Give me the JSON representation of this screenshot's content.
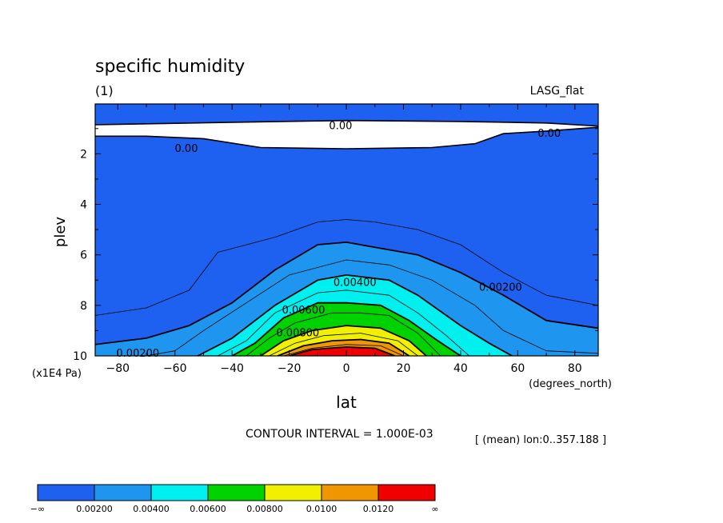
{
  "chart_data": {
    "type": "contour",
    "title": "specific humidity",
    "subtitle": "(1)",
    "dataset_label": "LASG_flat",
    "xlabel": "lat",
    "xunits": "(degrees_north)",
    "ylabel": "plev",
    "yunits": "(x1E4 Pa)",
    "xlim": [
      -88,
      88
    ],
    "ylim": [
      10,
      0.2
    ],
    "x_ticks": [
      -80,
      -60,
      -40,
      -20,
      0,
      20,
      40,
      60,
      80
    ],
    "x_tick_labels": [
      "−80",
      "−60",
      "−40",
      "−20",
      "0",
      "20",
      "40",
      "60",
      "80"
    ],
    "y_ticks": [
      2,
      4,
      6,
      8,
      10
    ],
    "y_tick_labels": [
      "2",
      "4",
      "6",
      "8",
      "10"
    ],
    "contour_interval_text": "CONTOUR INTERVAL = 1.000E-03",
    "mean_note": "[ (mean) lon:0..357.188 ]",
    "contour_labels": [
      {
        "text": "0.00",
        "lat": -2,
        "plev": 0.9
      },
      {
        "text": "0.00",
        "lat": 71,
        "plev": 1.2
      },
      {
        "text": "0.00",
        "lat": -56,
        "plev": 1.8
      },
      {
        "text": "0.00400",
        "lat": 3,
        "plev": 7.1
      },
      {
        "text": "0.00200",
        "lat": 54,
        "plev": 7.3
      },
      {
        "text": "0.00200",
        "lat": -73,
        "plev": 9.9
      },
      {
        "text": "0.00600",
        "lat": -15,
        "plev": 8.2
      },
      {
        "text": "0.00800",
        "lat": -17,
        "plev": 9.1
      }
    ],
    "zero_region_bounds": {
      "top": [
        [
          -88,
          0.85
        ],
        [
          -40,
          0.75
        ],
        [
          0,
          0.68
        ],
        [
          40,
          0.72
        ],
        [
          70,
          0.78
        ],
        [
          88,
          0.9
        ]
      ],
      "bottom": [
        [
          88,
          0.95
        ],
        [
          70,
          1.1
        ],
        [
          55,
          1.2
        ],
        [
          45,
          1.6
        ],
        [
          30,
          1.75
        ],
        [
          0,
          1.8
        ],
        [
          -30,
          1.75
        ],
        [
          -50,
          1.4
        ],
        [
          -70,
          1.3
        ],
        [
          -88,
          1.3
        ]
      ]
    },
    "contours": [
      {
        "level": 0.001,
        "points": [
          [
            -88,
            8.4
          ],
          [
            -70,
            8.1
          ],
          [
            -55,
            7.4
          ],
          [
            -45,
            5.9
          ],
          [
            -25,
            5.3
          ],
          [
            -10,
            4.7
          ],
          [
            0,
            4.6
          ],
          [
            10,
            4.7
          ],
          [
            25,
            5.0
          ],
          [
            40,
            5.6
          ],
          [
            55,
            6.7
          ],
          [
            70,
            7.6
          ],
          [
            88,
            8.0
          ]
        ]
      },
      {
        "level": 0.002,
        "points": [
          [
            -88,
            9.55
          ],
          [
            -70,
            9.3
          ],
          [
            -55,
            8.8
          ],
          [
            -40,
            7.9
          ],
          [
            -25,
            6.6
          ],
          [
            -10,
            5.6
          ],
          [
            0,
            5.5
          ],
          [
            10,
            5.7
          ],
          [
            25,
            6.0
          ],
          [
            40,
            6.7
          ],
          [
            55,
            7.6
          ],
          [
            70,
            8.6
          ],
          [
            88,
            8.9
          ]
        ]
      },
      {
        "level": 0.003,
        "points": [
          [
            -70,
            10
          ],
          [
            -60,
            9.8
          ],
          [
            -50,
            9.0
          ],
          [
            -35,
            7.9
          ],
          [
            -20,
            6.8
          ],
          [
            0,
            6.2
          ],
          [
            15,
            6.4
          ],
          [
            30,
            7.0
          ],
          [
            45,
            8.0
          ],
          [
            55,
            9.0
          ],
          [
            70,
            9.8
          ],
          [
            88,
            9.9
          ]
        ]
      },
      {
        "level": 0.004,
        "points": [
          [
            -52,
            10
          ],
          [
            -40,
            9.3
          ],
          [
            -25,
            8.0
          ],
          [
            -10,
            7.0
          ],
          [
            0,
            6.8
          ],
          [
            15,
            7.0
          ],
          [
            25,
            7.6
          ],
          [
            40,
            8.8
          ],
          [
            50,
            9.5
          ],
          [
            58,
            10
          ]
        ]
      },
      {
        "level": 0.005,
        "points": [
          [
            -45,
            10
          ],
          [
            -35,
            9.4
          ],
          [
            -25,
            8.3
          ],
          [
            -10,
            7.5
          ],
          [
            0,
            7.4
          ],
          [
            15,
            7.6
          ],
          [
            25,
            8.3
          ],
          [
            35,
            9.2
          ],
          [
            43,
            10
          ]
        ]
      },
      {
        "level": 0.006,
        "points": [
          [
            -40,
            10
          ],
          [
            -32,
            9.5
          ],
          [
            -22,
            8.5
          ],
          [
            -10,
            7.9
          ],
          [
            0,
            7.9
          ],
          [
            12,
            8.0
          ],
          [
            22,
            8.6
          ],
          [
            32,
            9.4
          ],
          [
            40,
            10
          ]
        ]
      },
      {
        "level": 0.007,
        "points": [
          [
            -35,
            10
          ],
          [
            -27,
            9.3
          ],
          [
            -18,
            8.7
          ],
          [
            -5,
            8.3
          ],
          [
            5,
            8.3
          ],
          [
            15,
            8.4
          ],
          [
            25,
            9.1
          ],
          [
            33,
            10
          ]
        ]
      },
      {
        "level": 0.008,
        "points": [
          [
            -30,
            10
          ],
          [
            -22,
            9.4
          ],
          [
            -12,
            9.0
          ],
          [
            0,
            8.8
          ],
          [
            12,
            8.9
          ],
          [
            22,
            9.4
          ],
          [
            28,
            10
          ]
        ]
      },
      {
        "level": 0.009,
        "points": [
          [
            -27,
            10
          ],
          [
            -18,
            9.5
          ],
          [
            -8,
            9.2
          ],
          [
            5,
            9.1
          ],
          [
            18,
            9.4
          ],
          [
            25,
            10
          ]
        ]
      },
      {
        "level": 0.01,
        "points": [
          [
            -24,
            10
          ],
          [
            -15,
            9.6
          ],
          [
            -5,
            9.4
          ],
          [
            5,
            9.35
          ],
          [
            15,
            9.5
          ],
          [
            22,
            10
          ]
        ]
      },
      {
        "level": 0.011,
        "points": [
          [
            -22,
            10
          ],
          [
            -12,
            9.7
          ],
          [
            0,
            9.55
          ],
          [
            12,
            9.6
          ],
          [
            20,
            10
          ]
        ]
      },
      {
        "level": 0.012,
        "points": [
          [
            -20,
            10
          ],
          [
            -12,
            9.75
          ],
          [
            0,
            9.65
          ],
          [
            10,
            9.7
          ],
          [
            17,
            10
          ]
        ]
      }
    ],
    "colorbar": {
      "colors": [
        "#1e60f0",
        "#1e96f0",
        "#00f0f0",
        "#00d200",
        "#f0f000",
        "#f09600",
        "#f00000"
      ],
      "labels": [
        "−∞",
        "0.00200",
        "0.00400",
        "0.00600",
        "0.00800",
        "0.0100",
        "0.0120",
        "∞"
      ]
    },
    "fill_colors": {
      "zero_region": "#ffffff"
    },
    "line_color": "#000000"
  }
}
